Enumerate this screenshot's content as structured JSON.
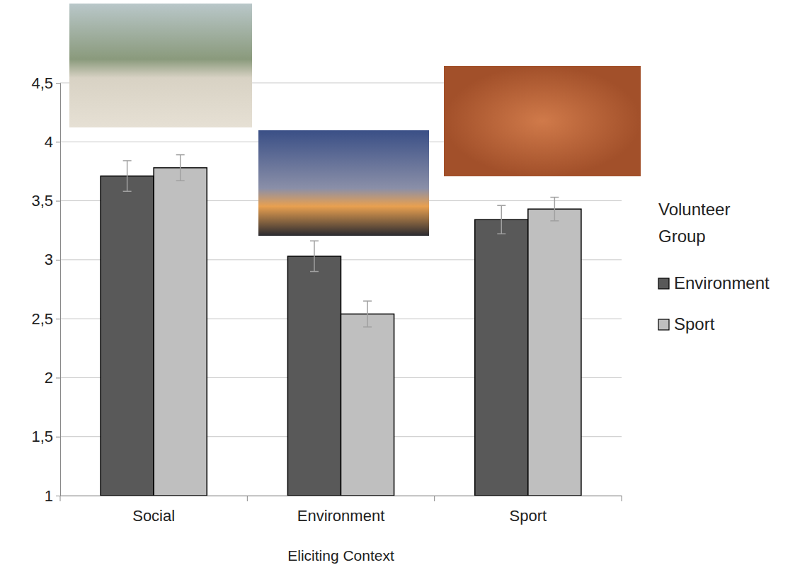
{
  "chart_data": {
    "type": "bar",
    "x_label": "Eliciting Context",
    "legend_title": "Volunteer Group",
    "categories": [
      "Social",
      "Environment",
      "Sport"
    ],
    "series": [
      {
        "name": "Environment",
        "color": "#595959",
        "values": [
          3.71,
          3.03,
          3.34
        ],
        "errors": [
          0.13,
          0.13,
          0.12
        ]
      },
      {
        "name": "Sport",
        "color": "#bfbfbf",
        "values": [
          3.78,
          2.54,
          3.43
        ],
        "errors": [
          0.11,
          0.11,
          0.1
        ]
      }
    ],
    "ylim": [
      1,
      4.5
    ],
    "yticks": [
      1,
      {
        "value": 1.5,
        "label": "1,5"
      },
      2,
      {
        "value": 2.5,
        "label": "2,5"
      },
      3,
      {
        "value": 3.5,
        "label": "3,5"
      },
      4,
      {
        "value": 4.5,
        "label": "4,5"
      }
    ],
    "grid": true,
    "legend": "right"
  }
}
